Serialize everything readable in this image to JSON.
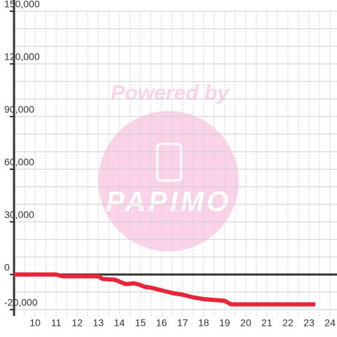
{
  "chart_data": {
    "type": "line",
    "watermark": "Powered by",
    "watermark_logo": "PAPIMO",
    "x": [
      9,
      11,
      11.3,
      12.7,
      13,
      13.2,
      13.8,
      14.3,
      14.7,
      15,
      15.2,
      15.5,
      16,
      16.5,
      17,
      17.5,
      18,
      18.5,
      19,
      19.3,
      20,
      23.3
    ],
    "series": [
      {
        "color": "#e8263a",
        "values": [
          0,
          0,
          -1000,
          -1000,
          -1000,
          -2500,
          -3000,
          -5500,
          -5000,
          -6000,
          -7000,
          -7500,
          -9000,
          -10500,
          -11500,
          -13000,
          -14000,
          -14500,
          -15000,
          -17000,
          -17000,
          -17000
        ]
      }
    ],
    "xlim": [
      9,
      24.33
    ],
    "ylim": [
      -23600,
      150000
    ],
    "xticks": [
      10,
      11,
      12,
      13,
      14,
      15,
      16,
      17,
      18,
      19,
      20,
      21,
      22,
      23,
      24
    ],
    "yticks": [
      {
        "value": -20000,
        "label": "-20,000"
      },
      0,
      {
        "value": 30000,
        "label": "30,000"
      },
      {
        "value": 60000,
        "label": "60,000"
      },
      {
        "value": 90000,
        "label": "90,000"
      },
      {
        "value": 120000,
        "label": "120,000"
      },
      {
        "value": 150000,
        "label": "150,000"
      }
    ],
    "grid": true
  }
}
